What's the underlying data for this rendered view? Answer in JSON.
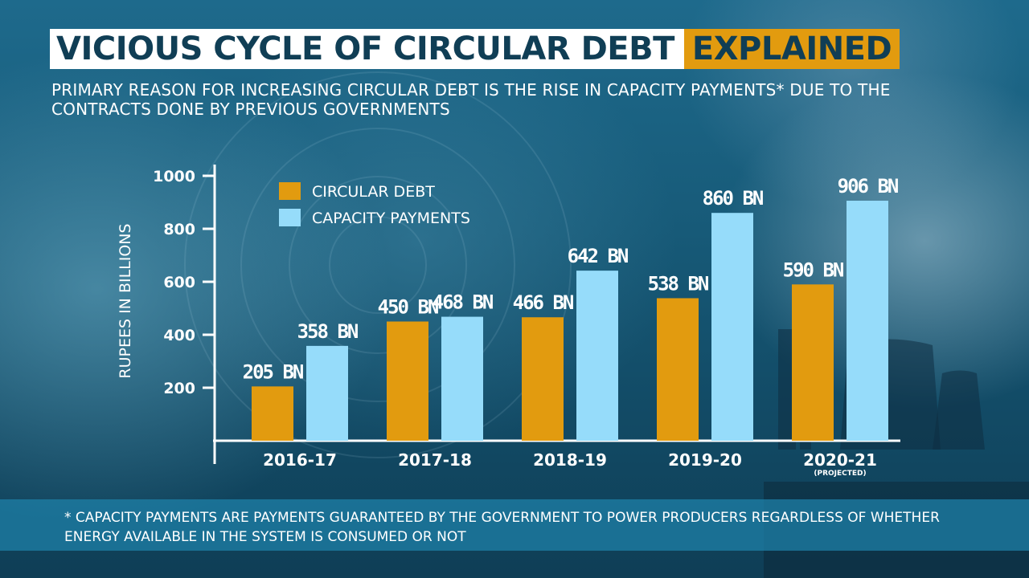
{
  "title": {
    "main": "VICIOUS CYCLE OF CIRCULAR DEBT",
    "accent": "EXPLAINED"
  },
  "subtitle": "PRIMARY REASON FOR INCREASING CIRCULAR DEBT IS THE RISE IN CAPACITY PAYMENTS* DUE TO THE CONTRACTS DONE BY PREVIOUS GOVERNMENTS",
  "footnote": "* CAPACITY PAYMENTS ARE PAYMENTS GUARANTEED BY THE GOVERNMENT TO POWER PRODUCERS REGARDLESS OF WHETHER ENERGY AVAILABLE IN THE SYSTEM IS CONSUMED OR NOT",
  "colors": {
    "circular_debt": "#e29b0f",
    "capacity_payments": "#96dcfa",
    "title_text": "#103e55",
    "accent_bg": "#e29b0f"
  },
  "chart_data": {
    "type": "bar",
    "title": "",
    "xlabel": "",
    "ylabel": "RUPEES IN BILLIONS",
    "ylim": [
      0,
      1000
    ],
    "yticks": [
      200,
      400,
      600,
      800,
      1000
    ],
    "categories": [
      "2016-17",
      "2017-18",
      "2018-19",
      "2019-20",
      "2020-21"
    ],
    "category_notes": [
      "",
      "",
      "",
      "",
      "(PROJECTED)"
    ],
    "series": [
      {
        "name": "CIRCULAR DEBT",
        "values": [
          205,
          450,
          466,
          538,
          590
        ],
        "labels": [
          "205 BN",
          "450 BN",
          "466 BN",
          "538 BN",
          "590 BN"
        ]
      },
      {
        "name": "CAPACITY PAYMENTS",
        "values": [
          358,
          468,
          642,
          860,
          906
        ],
        "labels": [
          "358 BN",
          "468 BN",
          "642 BN",
          "860 BN",
          "906 BN"
        ]
      }
    ],
    "legend": "top-left",
    "grid": false
  }
}
